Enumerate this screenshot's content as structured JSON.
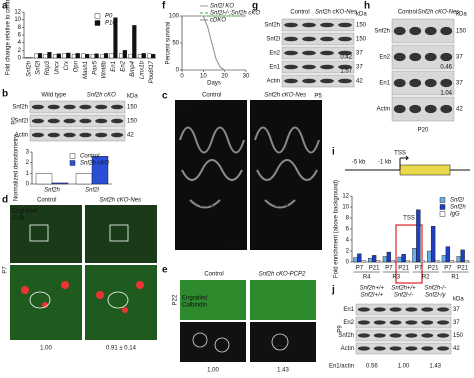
{
  "chart_data": [
    {
      "type": "bar",
      "letter": "a",
      "ylabel": "Fold change relative to control",
      "categories": [
        "Snf2h",
        "Snf2l",
        "Rbp3",
        "Uncx",
        "Crx",
        "Opn",
        "Mash1",
        "Pax5",
        "Wnt8b",
        "En1",
        "En2",
        "Bmp4",
        "Lmx1b",
        "Pou6f17"
      ],
      "series": [
        {
          "name": "P0",
          "color": "#ffffff",
          "values": [
            0.1,
            1.1,
            1.0,
            0.9,
            1.2,
            1.0,
            1.1,
            1.0,
            0.9,
            1.2,
            1.1,
            1.0,
            1.0,
            1.1
          ]
        },
        {
          "name": "P10",
          "color": "#111111",
          "values": [
            0.1,
            1.2,
            1.5,
            1.1,
            1.3,
            1.2,
            1.0,
            1.1,
            1.2,
            10.5,
            2.0,
            8.5,
            1.2,
            1.0
          ]
        }
      ],
      "ylim": [
        0,
        12
      ],
      "yticks": [
        0,
        2,
        4,
        6,
        8,
        10,
        12
      ]
    },
    {
      "type": "bar",
      "ylabel": "Normalized densitometry",
      "categories": [
        "Snf2h",
        "Snf2l"
      ],
      "series": [
        {
          "name": "Control",
          "color": "#ffffff",
          "values": [
            1,
            1
          ]
        },
        {
          "name": "Snf2h cKO",
          "color": "#2a4fd6",
          "values": [
            0.1,
            2.6
          ]
        }
      ],
      "ylim": [
        0,
        3
      ],
      "yticks": [
        0,
        1,
        2,
        3
      ]
    },
    {
      "type": "line",
      "letter": "f",
      "xlabel": "Days",
      "ylabel": "Percent survival",
      "x": [
        0,
        5,
        10,
        12,
        14,
        16,
        18,
        20,
        30
      ],
      "series": [
        {
          "name": "Snf2l KO",
          "color": "#999999",
          "dashed": false,
          "values": [
            100,
            100,
            100,
            100,
            100,
            100,
            100,
            100,
            100
          ]
        },
        {
          "name": "Snf2l-/-;Snf2h cKO",
          "color": "#3cae3c",
          "dashed": true,
          "values": [
            100,
            100,
            100,
            100,
            100,
            100,
            100,
            100,
            100
          ]
        },
        {
          "name": "cDKO",
          "color": "#8a8a8a",
          "dashed": false,
          "values": [
            100,
            100,
            100,
            80,
            50,
            20,
            5,
            0,
            0
          ]
        }
      ],
      "xlim": [
        0,
        30
      ],
      "xticks": [
        0,
        10,
        20,
        30
      ],
      "ylim": [
        0,
        100
      ],
      "yticks": [
        0,
        50,
        100
      ]
    },
    {
      "type": "bar",
      "letter": "i",
      "ylabel": "Fold enrichment (above background)",
      "categories": [
        "P7",
        "P21",
        "P7",
        "P21",
        "P7",
        "P21",
        "P7",
        "P21"
      ],
      "groups": [
        "R4",
        "R3",
        "R2",
        "R1"
      ],
      "series": [
        {
          "name": "Snf2l",
          "color": "#6aaee8",
          "values": [
            0.8,
            0.7,
            1.0,
            0.9,
            2.5,
            2.0,
            1.2,
            1.0
          ]
        },
        {
          "name": "Snf2h",
          "color": "#1f3fbf",
          "values": [
            1.5,
            1.2,
            1.8,
            1.4,
            9.5,
            6.5,
            2.8,
            2.2
          ]
        },
        {
          "name": "IgG",
          "color": "#ffffff",
          "values": [
            0.3,
            0.3,
            0.3,
            0.3,
            0.3,
            0.3,
            0.3,
            0.3
          ]
        }
      ],
      "ylim": [
        0,
        12
      ],
      "yticks": [
        0,
        2,
        4,
        6,
        8,
        10,
        12
      ],
      "schematic": {
        "tss": "TSS",
        "marks": [
          "-5 kb",
          "-1 kb"
        ],
        "highlight": "TSS"
      }
    }
  ],
  "panels": {
    "b": {
      "letter": "b",
      "headers": [
        "Wild type",
        "Snf2h cKO"
      ],
      "unit": "kDa",
      "rows": [
        "Snf2h",
        "Snf2l",
        "Actin"
      ],
      "sizes": [
        "150",
        "150",
        "42"
      ],
      "age": "P0"
    },
    "c": {
      "letter": "c",
      "headers": [
        "Control",
        "Snf2h cKO-Nes"
      ],
      "stain": "Snf2l",
      "regions": [
        "DCN",
        "DCN"
      ],
      "age": "P7"
    },
    "d": {
      "letter": "d",
      "headers": [
        "Control",
        "Snf2h cKO-Nes"
      ],
      "stains": [
        "Engrailed",
        "Calb"
      ],
      "age": "P7",
      "quant": [
        "1.00",
        "0.91 ± 0.14"
      ]
    },
    "e": {
      "letter": "e",
      "headers": [
        "Control",
        "Snf2h cKO-PCP2"
      ],
      "stains": [
        "Engrailed",
        "Calbindin"
      ],
      "age": "P22",
      "quant": [
        "1.00",
        "1.43"
      ]
    },
    "g": {
      "letter": "g",
      "headers": [
        "Control",
        "Snf2h cKO-Nes"
      ],
      "unit": "kDa",
      "rows": [
        "Snf2h",
        "Snf2l",
        "En2",
        "En1",
        "Actin"
      ],
      "sizes": [
        "150",
        "150",
        "37",
        "37",
        "42"
      ],
      "ratios": [
        "0.42",
        "1.57"
      ],
      "age": "P5"
    },
    "h": {
      "letter": "h",
      "headers": [
        "Control",
        "Snf2h cKO-Nes"
      ],
      "unit": "kDa",
      "rows": [
        "Snf2h",
        "En2",
        "En1",
        "Actin"
      ],
      "sizes": [
        "150",
        "37",
        "37",
        "42"
      ],
      "ratios": [
        "0.46",
        "1.04"
      ],
      "age": "P20"
    },
    "j": {
      "letter": "j",
      "headers": [
        [
          "Snf2h+/+",
          "Snf2l+/+"
        ],
        [
          "Snf2h+/+",
          "Snf2l-/-"
        ],
        [
          "Snf2h-/-",
          "Snf2l-/y"
        ]
      ],
      "unit": "kDa",
      "rows": [
        "En1",
        "En2",
        "Snf2h",
        "Actin"
      ],
      "sizes": [
        "37",
        "37",
        "150",
        "42"
      ],
      "quant_label": "En1/actin",
      "quant": [
        "0.56",
        "1.00",
        "1.43"
      ],
      "age": "P9"
    }
  }
}
